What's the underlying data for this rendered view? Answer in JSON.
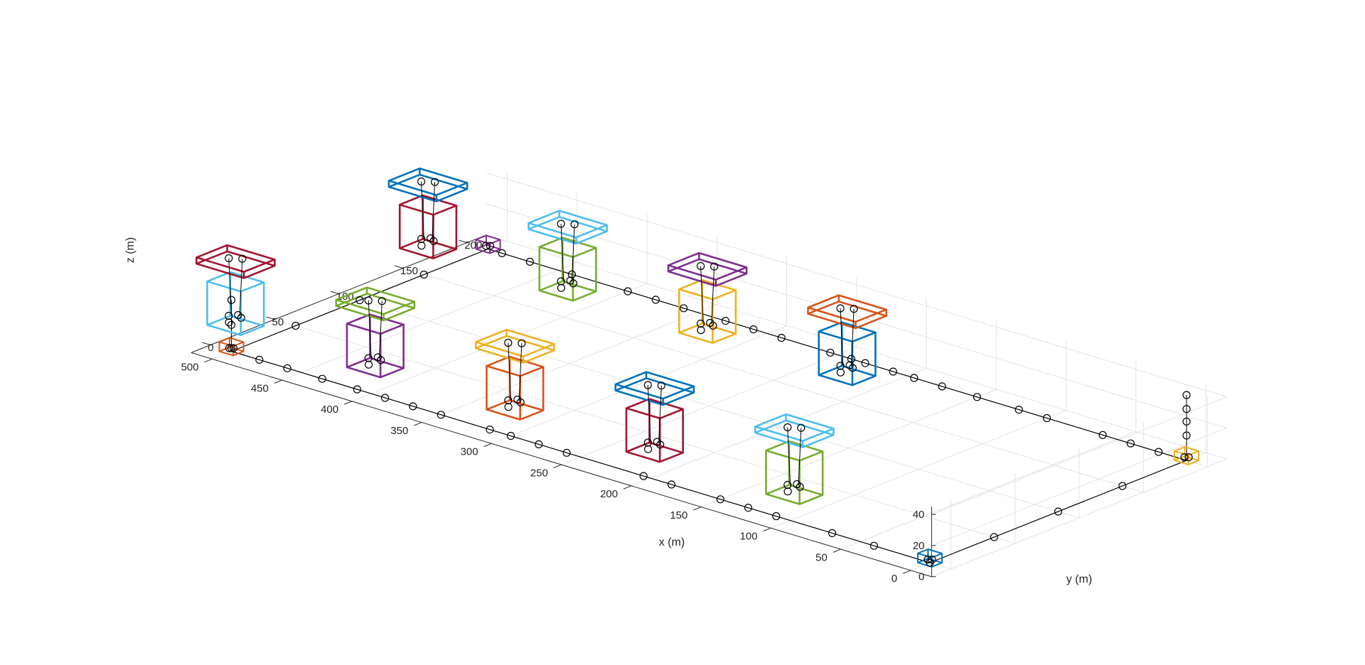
{
  "chart_data": {
    "type": "3d-line",
    "xlabel": "x (m)",
    "ylabel": "y (m)",
    "zlabel": "z (m)",
    "xlim": [
      -15,
      515
    ],
    "ylim": [
      -15,
      215
    ],
    "zlim": [
      0,
      45
    ],
    "x_ticks": [
      "0",
      "50",
      "100",
      "150",
      "200",
      "250",
      "300",
      "350",
      "400",
      "450",
      "500"
    ],
    "y_ticks": [
      "0",
      "50",
      "100",
      "150",
      "200"
    ],
    "z_ticks": [
      "0",
      "20",
      "40"
    ],
    "grid": true,
    "legend": "none",
    "colors": [
      "#0072BD",
      "#D95319",
      "#EDB120",
      "#7E2F8E",
      "#77AC30",
      "#4DBEEE",
      "#A2142F"
    ],
    "corner_nodes": [
      {
        "x": 0,
        "y": 0,
        "color": "#0072BD"
      },
      {
        "x": 500,
        "y": 0,
        "color": "#D95319"
      },
      {
        "x": 500,
        "y": 200,
        "color": "#7E2F8E"
      },
      {
        "x": 0,
        "y": 200,
        "color": "#EDB120"
      }
    ],
    "cable_nodes": [
      {
        "x": 0,
        "y": 0
      },
      {
        "x": 40,
        "y": 0
      },
      {
        "x": 70,
        "y": 0
      },
      {
        "x": 110,
        "y": 0
      },
      {
        "x": 130,
        "y": 0
      },
      {
        "x": 150,
        "y": 0
      },
      {
        "x": 185,
        "y": 0
      },
      {
        "x": 205,
        "y": 0
      },
      {
        "x": 260,
        "y": 0
      },
      {
        "x": 280,
        "y": 0
      },
      {
        "x": 300,
        "y": 0
      },
      {
        "x": 315,
        "y": 0
      },
      {
        "x": 350,
        "y": 0
      },
      {
        "x": 370,
        "y": 0
      },
      {
        "x": 390,
        "y": 0
      },
      {
        "x": 410,
        "y": 0
      },
      {
        "x": 435,
        "y": 0
      },
      {
        "x": 460,
        "y": 0
      },
      {
        "x": 480,
        "y": 0
      },
      {
        "x": 500,
        "y": 50
      },
      {
        "x": 500,
        "y": 100
      },
      {
        "x": 500,
        "y": 150
      },
      {
        "x": 490,
        "y": 200
      },
      {
        "x": 470,
        "y": 200
      },
      {
        "x": 440,
        "y": 200
      },
      {
        "x": 400,
        "y": 200
      },
      {
        "x": 380,
        "y": 200
      },
      {
        "x": 360,
        "y": 200
      },
      {
        "x": 330,
        "y": 200
      },
      {
        "x": 310,
        "y": 200
      },
      {
        "x": 290,
        "y": 200
      },
      {
        "x": 255,
        "y": 200
      },
      {
        "x": 240,
        "y": 200
      },
      {
        "x": 230,
        "y": 200
      },
      {
        "x": 210,
        "y": 200
      },
      {
        "x": 195,
        "y": 200
      },
      {
        "x": 175,
        "y": 200
      },
      {
        "x": 150,
        "y": 200
      },
      {
        "x": 120,
        "y": 200
      },
      {
        "x": 100,
        "y": 200
      },
      {
        "x": 60,
        "y": 200
      },
      {
        "x": 40,
        "y": 200
      },
      {
        "x": 20,
        "y": 200
      },
      {
        "x": 0,
        "y": 150
      },
      {
        "x": 0,
        "y": 100
      },
      {
        "x": 0,
        "y": 50
      }
    ],
    "anchor_drops": [
      {
        "x": 500,
        "y": 0,
        "z": [
          2,
          17,
          33
        ]
      },
      {
        "x": 0,
        "y": 200,
        "z": [
          16,
          25,
          33,
          42
        ]
      }
    ],
    "platforms": [
      {
        "x": 120,
        "y": 25,
        "platform_color": "#4DBEEE",
        "float_color": "#77AC30"
      },
      {
        "x": 220,
        "y": 25,
        "platform_color": "#0072BD",
        "float_color": "#A2142F"
      },
      {
        "x": 320,
        "y": 25,
        "platform_color": "#EDB120",
        "float_color": "#D95319"
      },
      {
        "x": 420,
        "y": 25,
        "platform_color": "#77AC30",
        "float_color": "#7E2F8E"
      },
      {
        "x": 520,
        "y": 25,
        "platform_color": "#A2142F",
        "float_color": "#4DBEEE"
      },
      {
        "x": 220,
        "y": 175,
        "platform_color": "#D95319",
        "float_color": "#0072BD"
      },
      {
        "x": 320,
        "y": 175,
        "platform_color": "#7E2F8E",
        "float_color": "#EDB120"
      },
      {
        "x": 420,
        "y": 175,
        "platform_color": "#4DBEEE",
        "float_color": "#77AC30"
      },
      {
        "x": 520,
        "y": 175,
        "platform_color": "#0072BD",
        "float_color": "#A2142F"
      }
    ]
  }
}
